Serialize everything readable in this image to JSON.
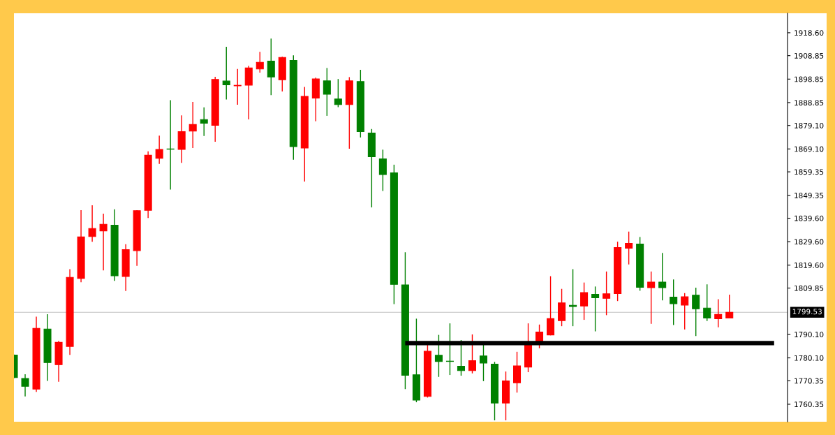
{
  "chart_data": {
    "type": "candlestick",
    "categories": [
      null,
      null,
      null,
      null,
      null,
      null,
      null,
      null,
      null,
      null,
      null,
      null,
      null,
      null,
      null,
      null,
      null,
      null,
      null,
      null,
      null,
      null,
      null,
      null,
      null,
      null,
      null,
      null,
      null,
      null,
      null,
      null,
      null,
      null,
      null,
      null,
      null,
      null,
      null,
      null,
      null,
      null,
      null,
      null,
      null,
      null,
      null,
      null,
      null,
      null,
      null,
      null,
      null,
      null,
      null,
      null,
      null,
      null,
      null,
      null,
      null,
      null,
      null,
      null,
      null,
      null,
      null,
      null,
      null,
      null
    ],
    "ohlc": [
      [
        1781.3,
        1781.5,
        1771.5,
        1771.7
      ],
      [
        1771.3,
        1773.1,
        1763.7,
        1768.0
      ],
      [
        1766.8,
        1797.7,
        1765.6,
        1792.7
      ],
      [
        1792.4,
        1798.7,
        1770.3,
        1778.1
      ],
      [
        1777.2,
        1787.3,
        1769.9,
        1786.7
      ],
      [
        1785.0,
        1817.9,
        1781.4,
        1814.4
      ],
      [
        1814.0,
        1843.0,
        1812.3,
        1831.6
      ],
      [
        1831.8,
        1845.1,
        1829.6,
        1835.2
      ],
      [
        1834.2,
        1841.5,
        1817.4,
        1837.0
      ],
      [
        1836.6,
        1843.4,
        1812.9,
        1815.1
      ],
      [
        1814.8,
        1828.5,
        1808.6,
        1826.2
      ],
      [
        1825.8,
        1843.0,
        1819.3,
        1842.8
      ],
      [
        1843.0,
        1868.1,
        1839.7,
        1866.4
      ],
      [
        1865.1,
        1874.8,
        1862.7,
        1868.9
      ],
      [
        1869.1,
        1889.9,
        1851.8,
        1869.0
      ],
      [
        1868.9,
        1883.4,
        1863.2,
        1876.5
      ],
      [
        1876.7,
        1889.1,
        1869.5,
        1879.5
      ],
      [
        1881.6,
        1886.8,
        1874.6,
        1880.1
      ],
      [
        1879.2,
        1899.8,
        1872.2,
        1898.7
      ],
      [
        1898.0,
        1912.6,
        1890.2,
        1896.4
      ],
      [
        1896.0,
        1903.2,
        1887.9,
        1896.2
      ],
      [
        1896.3,
        1904.5,
        1881.7,
        1903.6
      ],
      [
        1903.2,
        1910.5,
        1901.6,
        1906.0
      ],
      [
        1906.5,
        1916.1,
        1892.0,
        1899.8
      ],
      [
        1898.6,
        1908.4,
        1893.6,
        1908.1
      ],
      [
        1906.8,
        1909.0,
        1864.5,
        1870.1
      ],
      [
        1869.5,
        1895.5,
        1855.2,
        1891.5
      ],
      [
        1890.8,
        1899.5,
        1880.9,
        1898.9
      ],
      [
        1898.1,
        1903.6,
        1883.2,
        1892.4
      ],
      [
        1890.4,
        1898.9,
        1886.9,
        1888.0
      ],
      [
        1888.0,
        1899.7,
        1869.2,
        1898.1
      ],
      [
        1897.8,
        1902.8,
        1874.0,
        1876.5
      ],
      [
        1875.9,
        1877.6,
        1844.2,
        1865.8
      ],
      [
        1864.9,
        1868.8,
        1851.2,
        1858.2
      ],
      [
        1858.9,
        1862.4,
        1803.0,
        1811.4
      ],
      [
        1811.2,
        1825.1,
        1766.8,
        1772.7
      ],
      [
        1772.9,
        1796.8,
        1761.2,
        1762.1
      ],
      [
        1763.7,
        1785.9,
        1763.2,
        1782.9
      ],
      [
        1781.2,
        1789.9,
        1772.0,
        1778.6
      ],
      [
        1778.7,
        1794.8,
        1772.8,
        1778.6
      ],
      [
        1776.5,
        1787.7,
        1772.5,
        1774.7
      ],
      [
        1774.7,
        1790.1,
        1773.5,
        1778.9
      ],
      [
        1780.9,
        1785.9,
        1770.2,
        1777.9
      ],
      [
        1777.4,
        1778.4,
        1753.5,
        1760.9
      ],
      [
        1760.9,
        1774.3,
        1753.5,
        1770.3
      ],
      [
        1769.5,
        1782.7,
        1765.3,
        1776.7
      ],
      [
        1776.2,
        1794.8,
        1774.0,
        1785.9
      ],
      [
        1786.9,
        1794.3,
        1784.2,
        1791.1
      ],
      [
        1789.9,
        1814.9,
        1789.7,
        1796.8
      ],
      [
        1796.0,
        1809.5,
        1793.6,
        1803.5
      ],
      [
        1802.5,
        1817.9,
        1793.6,
        1802.0
      ],
      [
        1802.2,
        1812.2,
        1796.3,
        1807.9
      ],
      [
        1807.2,
        1810.5,
        1791.4,
        1805.7
      ],
      [
        1805.5,
        1816.9,
        1798.3,
        1807.4
      ],
      [
        1807.5,
        1829.6,
        1804.3,
        1827.1
      ],
      [
        1826.8,
        1833.9,
        1819.9,
        1828.9
      ],
      [
        1828.6,
        1831.6,
        1808.7,
        1810.2
      ],
      [
        1810.0,
        1816.9,
        1794.6,
        1812.4
      ],
      [
        1812.4,
        1824.8,
        1804.6,
        1810.0
      ],
      [
        1806.0,
        1813.5,
        1794.1,
        1803.2
      ],
      [
        1802.6,
        1807.7,
        1792.2,
        1806.1
      ],
      [
        1806.8,
        1810.0,
        1789.4,
        1801.0
      ],
      [
        1801.3,
        1811.4,
        1795.8,
        1797.1
      ],
      [
        1796.8,
        1805.1,
        1793.1,
        1798.6
      ],
      [
        1797.1,
        1807.0,
        1797.1,
        1799.5
      ],
      null,
      null,
      null,
      null,
      null
    ],
    "colors": [
      "#008000",
      "#008000",
      "#ff0000",
      "#008000",
      "#ff0000",
      "#ff0000",
      "#ff0000",
      "#ff0000",
      "#ff0000",
      "#008000",
      "#ff0000",
      "#ff0000",
      "#ff0000",
      "#ff0000",
      "#008000",
      "#ff0000",
      "#ff0000",
      "#008000",
      "#ff0000",
      "#008000",
      "#ff0000",
      "#ff0000",
      "#ff0000",
      "#008000",
      "#ff0000",
      "#008000",
      "#ff0000",
      "#ff0000",
      "#008000",
      "#008000",
      "#ff0000",
      "#008000",
      "#008000",
      "#008000",
      "#008000",
      "#008000",
      "#008000",
      "#ff0000",
      "#008000",
      "#008000",
      "#008000",
      "#ff0000",
      "#008000",
      "#008000",
      "#ff0000",
      "#ff0000",
      "#ff0000",
      "#ff0000",
      "#ff0000",
      "#ff0000",
      "#008000",
      "#ff0000",
      "#008000",
      "#ff0000",
      "#ff0000",
      "#ff0000",
      "#008000",
      "#ff0000",
      "#008000",
      "#008000",
      "#ff0000",
      "#008000",
      "#008000",
      "#ff0000",
      "#ff0000",
      null,
      null,
      null,
      null,
      null
    ],
    "series": [
      {
        "type": "line",
        "color": "#000000",
        "values": [
          null,
          null,
          null,
          null,
          null,
          null,
          null,
          null,
          null,
          null,
          null,
          null,
          null,
          null,
          null,
          null,
          null,
          null,
          null,
          null,
          null,
          null,
          null,
          null,
          null,
          null,
          null,
          null,
          null,
          null,
          null,
          null,
          null,
          null,
          null,
          1786.4,
          1786.4,
          1786.4,
          1786.4,
          1786.4,
          1786.4,
          1786.4,
          1786.4,
          1786.4,
          1786.4,
          1786.4,
          1786.4,
          1786.4,
          1786.4,
          1786.4,
          1786.4,
          1786.4,
          1786.4,
          1786.4,
          1786.4,
          1786.4,
          1786.4,
          1786.4,
          1786.4,
          1786.4,
          1786.4,
          1786.4,
          1786.4,
          1786.4,
          1786.4,
          1786.4,
          1786.4,
          1786.4,
          1786.4,
          null
        ]
      }
    ],
    "ref_lines": [
      {
        "axis": "y",
        "value": 1799.53,
        "label": "1799.53",
        "color": "#c0c0c0"
      }
    ],
    "ylim": [
      1752.9,
      1926.9
    ],
    "yticks": [
      {
        "value": 1918.6,
        "label": "1918.60"
      },
      {
        "value": 1908.85,
        "label": "1908.85"
      },
      {
        "value": 1898.85,
        "label": "1898.85"
      },
      {
        "value": 1888.85,
        "label": "1888.85"
      },
      {
        "value": 1879.1,
        "label": "1879.10"
      },
      {
        "value": 1869.1,
        "label": "1869.10"
      },
      {
        "value": 1859.35,
        "label": "1859.35"
      },
      {
        "value": 1849.35,
        "label": "1849.35"
      },
      {
        "value": 1839.6,
        "label": "1839.60"
      },
      {
        "value": 1829.6,
        "label": "1829.60"
      },
      {
        "value": 1819.6,
        "label": "1819.60"
      },
      {
        "value": 1809.85,
        "label": "1809.85"
      },
      {
        "value": 1790.1,
        "label": "1790.10"
      },
      {
        "value": 1780.1,
        "label": "1780.10"
      },
      {
        "value": 1770.35,
        "label": "1770.35"
      },
      {
        "value": 1760.35,
        "label": "1760.35"
      }
    ],
    "tick_labels": "y",
    "grid": false
  }
}
